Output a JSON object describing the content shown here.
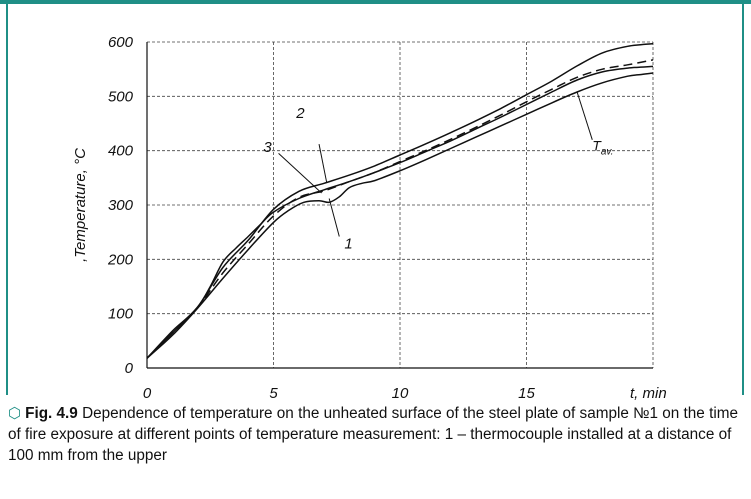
{
  "colors": {
    "frame": "#1f8f86",
    "curve": "#111111"
  },
  "chart_data": {
    "type": "line",
    "ylabel": ",Temperature, °C",
    "xlabel": "t, min",
    "xlim": [
      0,
      20
    ],
    "ylim": [
      0,
      600
    ],
    "x_ticks": [
      "0",
      "5",
      "10",
      "15"
    ],
    "y_ticks": [
      "0",
      "100",
      "200",
      "300",
      "400",
      "500",
      "600"
    ],
    "grid": true,
    "series": [
      {
        "name": "1",
        "style": "solid",
        "x": [
          0,
          1,
          2,
          3,
          4,
          5,
          5.6,
          6.2,
          6.8,
          7.2,
          7.6,
          8,
          8.5,
          9,
          10,
          11,
          12,
          13,
          14,
          15,
          16,
          17,
          18,
          19,
          19.5,
          20
        ],
        "y": [
          18,
          60,
          110,
          165,
          218,
          268,
          290,
          305,
          308,
          305,
          315,
          332,
          340,
          345,
          363,
          383,
          404,
          425,
          446,
          467,
          488,
          508,
          525,
          537,
          540,
          543
        ]
      },
      {
        "name": "2",
        "style": "solid",
        "x": [
          0,
          1,
          2,
          3,
          4,
          5,
          6,
          7,
          8,
          9,
          10,
          11,
          12,
          13,
          14,
          15,
          16,
          17,
          18,
          19,
          20
        ],
        "y": [
          18,
          68,
          112,
          185,
          235,
          292,
          325,
          340,
          355,
          372,
          392,
          412,
          433,
          455,
          478,
          503,
          528,
          556,
          580,
          592,
          597
        ]
      },
      {
        "name": "3",
        "style": "solid",
        "x": [
          0,
          1,
          2,
          2.5,
          3,
          3.5,
          4,
          4.5,
          5,
          6,
          7,
          8,
          9,
          10,
          11,
          12,
          13,
          14,
          15,
          16,
          17,
          18,
          19,
          20
        ],
        "y": [
          18,
          64,
          112,
          150,
          195,
          220,
          242,
          265,
          287,
          312,
          328,
          343,
          360,
          378,
          398,
          418,
          440,
          462,
          485,
          508,
          530,
          545,
          552,
          555
        ]
      },
      {
        "name": "Tav.",
        "style": "dashed",
        "x": [
          0,
          1,
          2,
          3,
          4,
          5,
          6,
          7,
          8,
          9,
          10,
          11,
          12,
          13,
          14,
          15,
          16,
          17,
          18,
          19,
          20
        ],
        "y": [
          18,
          64,
          111,
          175,
          228,
          280,
          314,
          326,
          343,
          360,
          380,
          400,
          421,
          443,
          466,
          490,
          513,
          535,
          550,
          558,
          567
        ]
      }
    ],
    "annotations": [
      "1",
      "2",
      "3",
      "Tav."
    ]
  },
  "caption": {
    "fig_label": "Fig. 4.9",
    "text": "Dependence of temperature on the unheated surface of the steel plate of sample №1 on the time of fire exposure at different points of temperature measurement: 1 – thermocouple installed at a distance of 100 mm from the upper"
  }
}
